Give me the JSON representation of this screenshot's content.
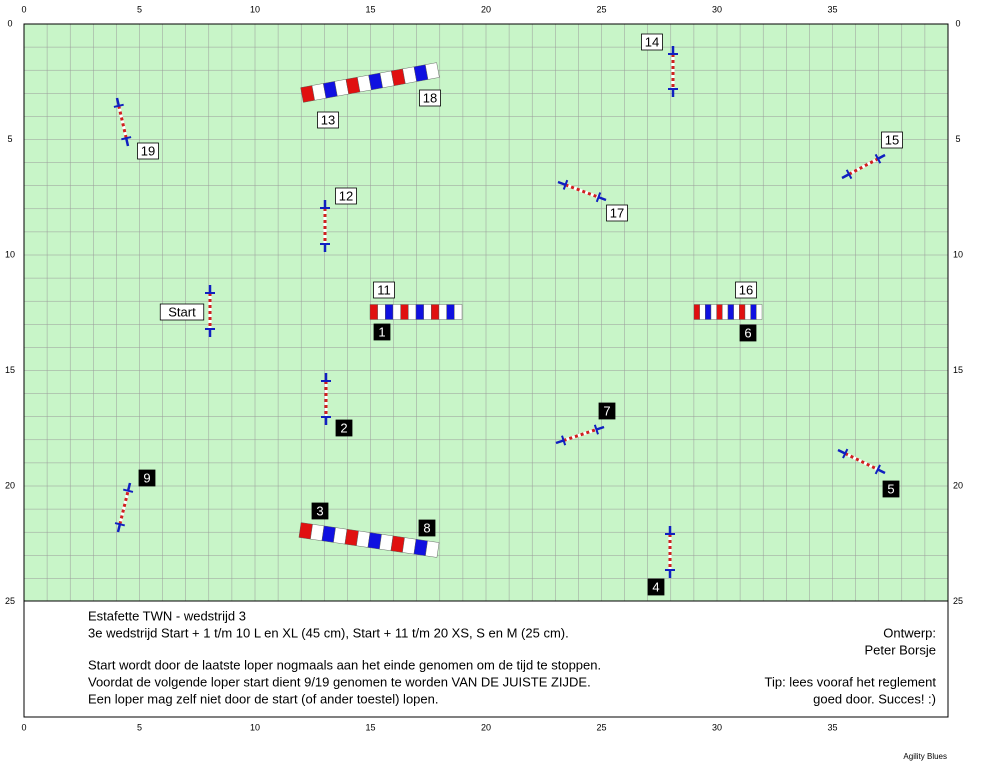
{
  "axis": {
    "x_labels": [
      "0",
      "5",
      "10",
      "15",
      "20",
      "25",
      "30",
      "35"
    ],
    "y_labels": [
      "0",
      "5",
      "10",
      "15",
      "20",
      "25"
    ]
  },
  "labels": [
    "Start",
    "1",
    "2",
    "3",
    "4",
    "5",
    "6",
    "7",
    "8",
    "9",
    "11",
    "12",
    "13",
    "14",
    "15",
    "16",
    "17",
    "18",
    "19"
  ],
  "info": {
    "title": "Estafette TWN - wedstrijd 3",
    "lines": [
      "3e wedstrijd Start + 1 t/m 10 L en XL (45 cm), Start + 11 t/m 20 XS, S en M (25 cm).",
      "Start wordt door de laatste loper nogmaals aan het einde genomen om de tijd te stoppen.",
      "Voordat de volgende loper start dient 9/19 genomen te worden VAN DE JUISTE ZIJDE.",
      "Een loper mag zelf niet door de start (of ander toestel) lopen."
    ],
    "design_label": "Ontwerp:",
    "designer": "Peter Borsje",
    "tip": [
      "Tip: lees vooraf het reglement",
      "goed door. Succes! :)"
    ]
  },
  "footer": "Agility Blues"
}
